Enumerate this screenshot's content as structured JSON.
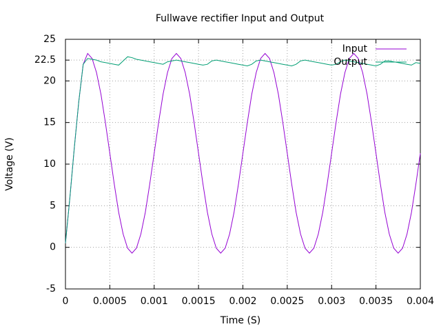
{
  "chart_data": {
    "type": "line",
    "title": "Fullwave rectifier Input and Output",
    "x_label": "Time (S)",
    "y_label": "Voltage (V)",
    "x": [
      0,
      5e-05,
      0.0001,
      0.00015,
      0.0002,
      0.00025,
      0.0003,
      0.00035,
      0.0004,
      0.00045,
      0.0005,
      0.00055,
      0.0006,
      0.00065,
      0.0007,
      0.00075,
      0.0008,
      0.00085,
      0.0009,
      0.00095,
      0.001,
      0.00105,
      0.0011,
      0.00115,
      0.0012,
      0.00125,
      0.0013,
      0.00135,
      0.0014,
      0.00145,
      0.0015,
      0.00155,
      0.0016,
      0.00165,
      0.0017,
      0.00175,
      0.0018,
      0.00185,
      0.0019,
      0.00195,
      0.002,
      0.00205,
      0.0021,
      0.00215,
      0.0022,
      0.00225,
      0.0023,
      0.00235,
      0.0024,
      0.00245,
      0.0025,
      0.00255,
      0.0026,
      0.00265,
      0.0027,
      0.00275,
      0.0028,
      0.00285,
      0.0029,
      0.00295,
      0.003,
      0.00305,
      0.0031,
      0.00315,
      0.0032,
      0.00325,
      0.0033,
      0.00335,
      0.0034,
      0.00345,
      0.0035,
      0.00355,
      0.0036,
      0.00365,
      0.0037,
      0.00375,
      0.0038,
      0.00385,
      0.0039,
      0.00395,
      0.004
    ],
    "series": [
      {
        "name": "Input",
        "color": "#9400d3",
        "values": [
          0.5,
          6,
          12,
          17.5,
          22,
          23.3,
          22.7,
          21.0,
          18.4,
          15.0,
          11.3,
          7.6,
          4.2,
          1.6,
          -0.1,
          -0.7,
          -0.1,
          1.6,
          4.2,
          7.6,
          11.3,
          15.0,
          18.4,
          21.0,
          22.7,
          23.3,
          22.7,
          21.0,
          18.4,
          15.0,
          11.3,
          7.6,
          4.2,
          1.6,
          -0.1,
          -0.7,
          -0.1,
          1.6,
          4.2,
          7.6,
          11.3,
          15.0,
          18.4,
          21.0,
          22.7,
          23.3,
          22.7,
          21.0,
          18.4,
          15.0,
          11.3,
          7.6,
          4.2,
          1.6,
          -0.1,
          -0.7,
          -0.1,
          1.6,
          4.2,
          7.6,
          11.3,
          15.0,
          18.4,
          21.0,
          22.7,
          23.3,
          22.7,
          21.0,
          18.4,
          15.0,
          11.3,
          7.6,
          4.2,
          1.6,
          -0.1,
          -0.7,
          -0.1,
          1.6,
          4.2,
          7.6,
          11.3
        ]
      },
      {
        "name": "Output",
        "color": "#009e73",
        "values": [
          0.5,
          6,
          12,
          17.5,
          22,
          22.7,
          22.6,
          22.5,
          22.3,
          22.2,
          22.1,
          22.0,
          21.9,
          22.4,
          22.9,
          22.8,
          22.6,
          22.5,
          22.4,
          22.3,
          22.2,
          22.1,
          22.0,
          22.3,
          22.4,
          22.5,
          22.4,
          22.3,
          22.2,
          22.1,
          22.0,
          21.9,
          22.0,
          22.4,
          22.5,
          22.4,
          22.3,
          22.2,
          22.1,
          22.0,
          21.9,
          21.8,
          22.0,
          22.4,
          22.5,
          22.4,
          22.3,
          22.2,
          22.1,
          22.0,
          21.9,
          21.8,
          22.0,
          22.4,
          22.5,
          22.4,
          22.3,
          22.2,
          22.1,
          22.0,
          21.9,
          22.0,
          22.3,
          22.5,
          22.4,
          22.3,
          22.2,
          22.1,
          22.0,
          21.9,
          21.8,
          22.0,
          22.4,
          22.4,
          22.3,
          22.2,
          22.1,
          22.0,
          21.9,
          22.2,
          22.1
        ]
      }
    ],
    "xlim": [
      0,
      0.004
    ],
    "xticks": [
      0,
      0.0005,
      0.001,
      0.0015,
      0.002,
      0.0025,
      0.003,
      0.0035,
      0.004
    ],
    "ylim": [
      -5,
      25
    ],
    "yticks": [
      -5,
      0,
      5,
      10,
      15,
      20,
      22.5,
      25
    ],
    "grid": true,
    "legend_position": "top-right"
  }
}
